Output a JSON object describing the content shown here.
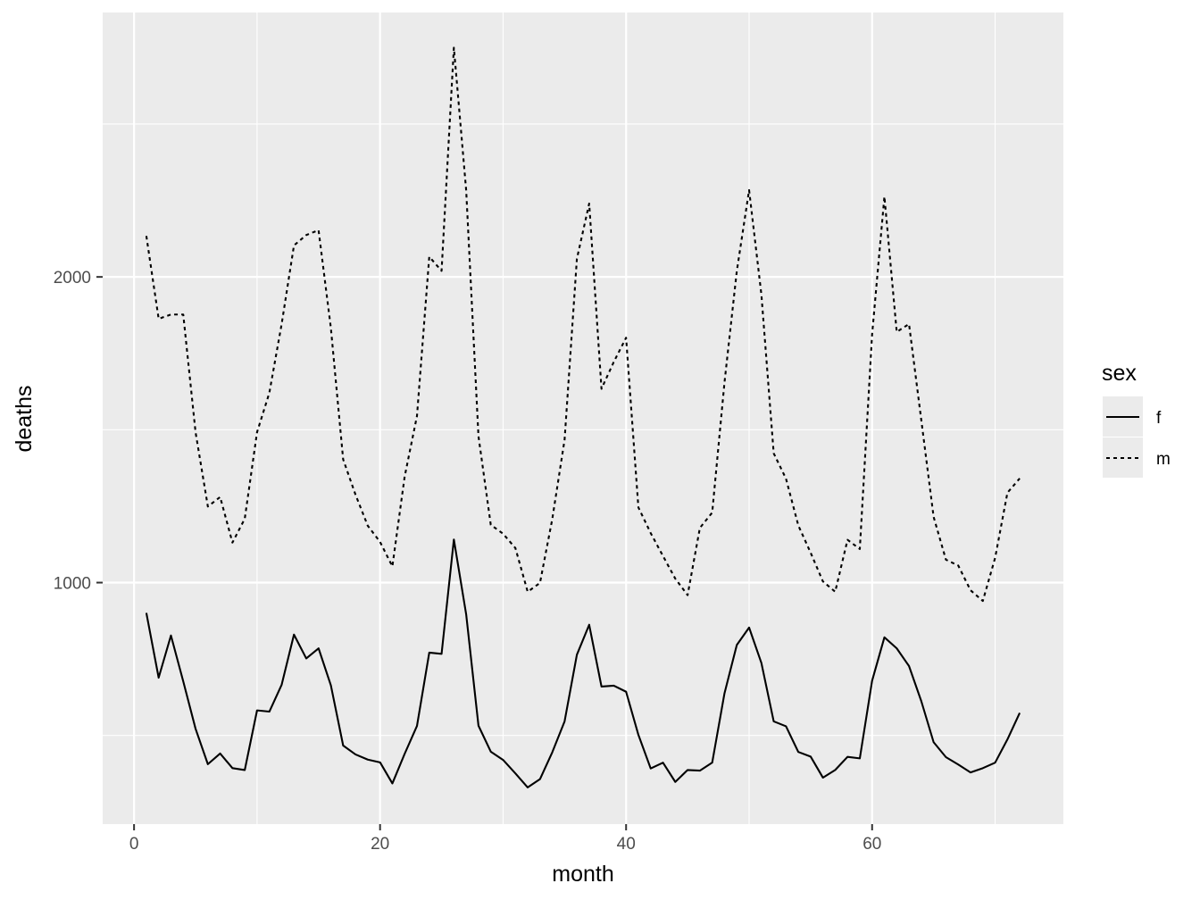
{
  "chart_data": {
    "type": "line",
    "xlabel": "month",
    "ylabel": "deaths",
    "xlim": [
      -2.55,
      75.55
    ],
    "ylim": [
      210,
      2865
    ],
    "x_ticks": [
      0,
      20,
      40,
      60
    ],
    "x_minor_ticks": [
      10,
      30,
      50,
      70
    ],
    "y_ticks": [
      1000,
      2000
    ],
    "y_minor_ticks": [
      500,
      1500,
      2500
    ],
    "x_tick_labels": [
      "0",
      "20",
      "40",
      "60"
    ],
    "y_tick_labels": [
      "1000",
      "2000"
    ],
    "grid": true,
    "legend": {
      "title": "sex",
      "position": "right",
      "entries": [
        "f",
        "m"
      ]
    },
    "x": [
      1,
      2,
      3,
      4,
      5,
      6,
      7,
      8,
      9,
      10,
      11,
      12,
      13,
      14,
      15,
      16,
      17,
      18,
      19,
      20,
      21,
      22,
      23,
      24,
      25,
      26,
      27,
      28,
      29,
      30,
      31,
      32,
      33,
      34,
      35,
      36,
      37,
      38,
      39,
      40,
      41,
      42,
      43,
      44,
      45,
      46,
      47,
      48,
      49,
      50,
      51,
      52,
      53,
      54,
      55,
      56,
      57,
      58,
      59,
      60,
      61,
      62,
      63,
      64,
      65,
      66,
      67,
      68,
      69,
      70,
      71,
      72
    ],
    "series": [
      {
        "name": "f",
        "linetype": "solid",
        "values": [
          901,
          689,
          827,
          677,
          522,
          406,
          441,
          393,
          387,
          582,
          578,
          666,
          830,
          752,
          785,
          664,
          467,
          438,
          421,
          412,
          343,
          440,
          531,
          771,
          767,
          1141,
          896,
          532,
          447,
          420,
          376,
          330,
          357,
          445,
          546,
          764,
          862,
          660,
          663,
          643,
          502,
          392,
          411,
          348,
          387,
          385,
          411,
          638,
          796,
          853,
          737,
          546,
          530,
          446,
          431,
          362,
          387,
          430,
          425,
          679,
          821,
          785,
          727,
          612,
          478,
          429,
          405,
          379,
          393,
          411,
          487,
          574
        ]
      },
      {
        "name": "m",
        "linetype": "dashed",
        "values": [
          2134,
          1863,
          1877,
          1877,
          1492,
          1249,
          1280,
          1131,
          1209,
          1492,
          1621,
          1846,
          2103,
          2137,
          2153,
          1833,
          1403,
          1288,
          1186,
          1133,
          1053,
          1347,
          1545,
          2066,
          2020,
          2750,
          2283,
          1479,
          1189,
          1160,
          1113,
          970,
          999,
          1208,
          1467,
          2059,
          2240,
          1634,
          1722,
          1801,
          1246,
          1162,
          1087,
          1013,
          959,
          1179,
          1229,
          1655,
          2019,
          2284,
          1942,
          1423,
          1340,
          1187,
          1098,
          1004,
          970,
          1140,
          1110,
          1812,
          2263,
          1820,
          1846,
          1531,
          1215,
          1075,
          1056,
          975,
          940,
          1081,
          1294,
          1341
        ]
      }
    ]
  }
}
